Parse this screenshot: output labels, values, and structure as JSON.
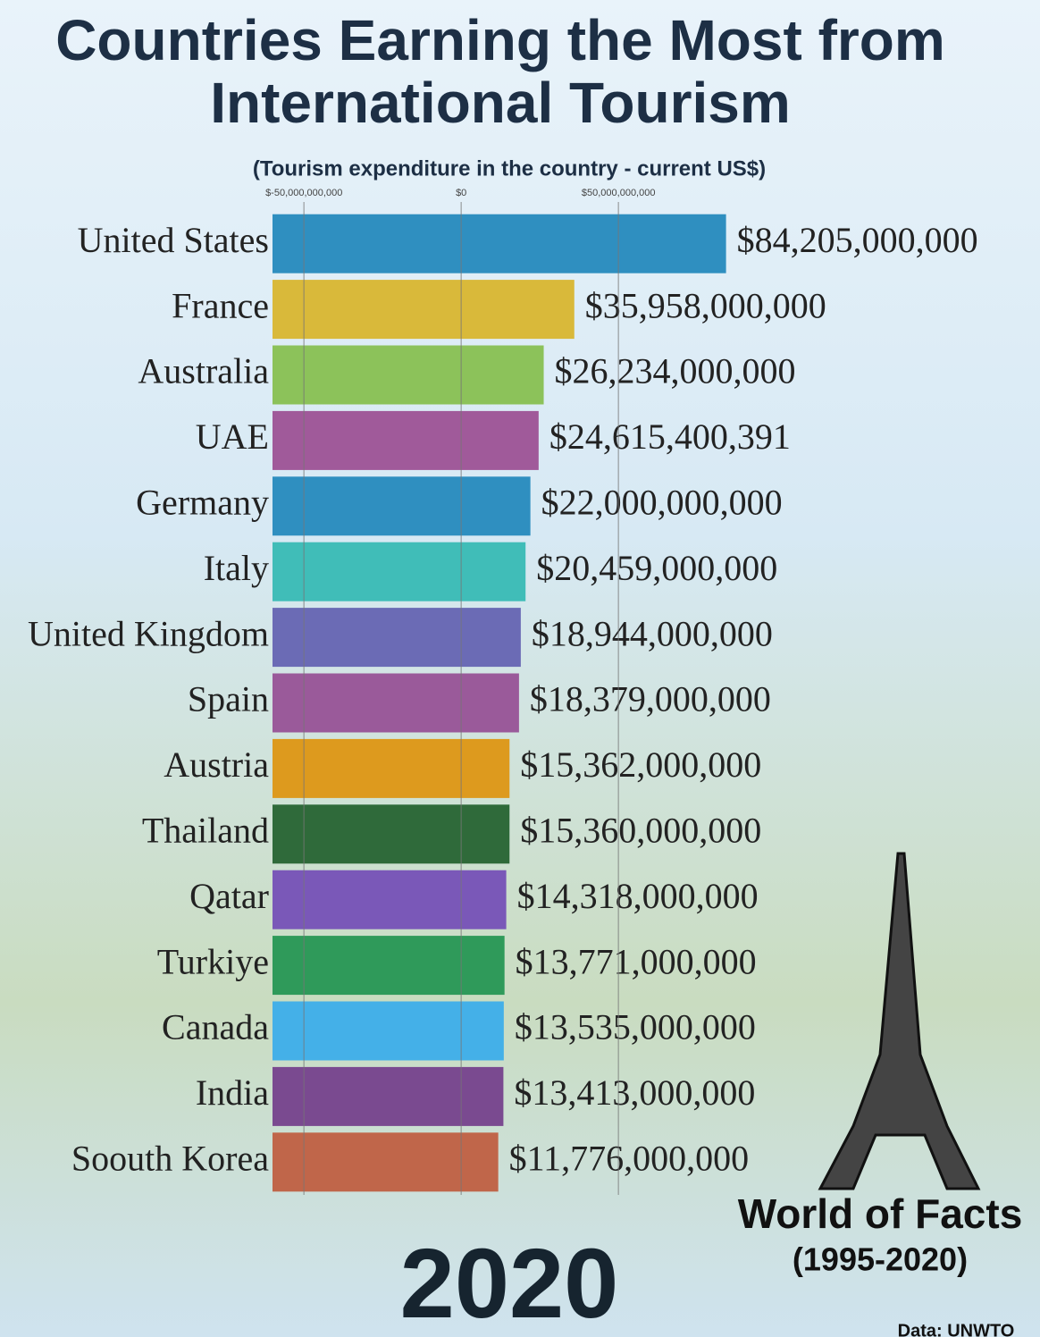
{
  "chart_data": {
    "type": "bar",
    "orientation": "horizontal",
    "title": "Countries Earning the Most from International Tourism",
    "subtitle": "(Tourism expenditure in the country - current US$)",
    "categories": [
      "United States",
      "France",
      "Australia",
      "UAE",
      "Germany",
      "Italy",
      "United Kingdom",
      "Spain",
      "Austria",
      "Thailand",
      "Qatar",
      "Turkiye",
      "Canada",
      "India",
      "Soouth Korea"
    ],
    "values": [
      84205000000,
      35958000000,
      26234000000,
      24615400391,
      22000000000,
      20459000000,
      18944000000,
      18379000000,
      15362000000,
      15360000000,
      14318000000,
      13771000000,
      13535000000,
      13413000000,
      11776000000
    ],
    "value_labels": [
      "$84,205,000,000",
      "$35,958,000,000",
      "$26,234,000,000",
      "$24,615,400,391",
      "$22,000,000,000",
      "$20,459,000,000",
      "$18,944,000,000",
      "$18,379,000,000",
      "$15,362,000,000",
      "$15,360,000,000",
      "$14,318,000,000",
      "$13,771,000,000",
      "$13,535,000,000",
      "$13,413,000,000",
      "$11,776,000,000"
    ],
    "colors": [
      "#2f8fc0",
      "#d9b93a",
      "#8cc25a",
      "#a05a9a",
      "#2f8fc0",
      "#40bdb8",
      "#6b6bb5",
      "#9a5a9a",
      "#dd9a1e",
      "#2f6a3a",
      "#7a58b8",
      "#2f9a5a",
      "#44b0e8",
      "#7a4a90",
      "#c0664a"
    ],
    "xlim": [
      -60000000000,
      90000000000
    ],
    "xticks": [
      {
        "value": -50000000000,
        "label": "$-50,000,000,000"
      },
      {
        "value": 0,
        "label": "$0"
      },
      {
        "value": 50000000000,
        "label": "$50,000,000,000"
      }
    ],
    "grid": true,
    "annotations": [
      "2020",
      "World of Facts",
      "(1995-2020)",
      "Data: UNWTO"
    ]
  }
}
